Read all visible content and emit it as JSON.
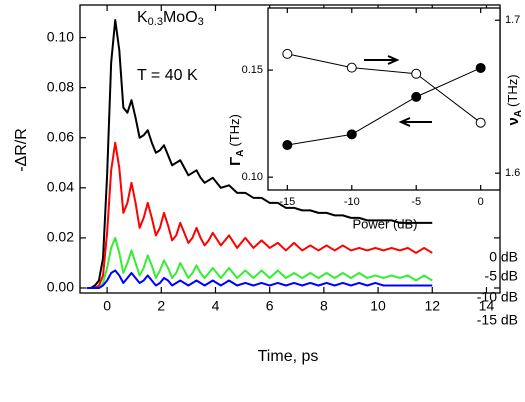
{
  "chart_data": [
    {
      "type": "line",
      "xlabel": "Time,  ps",
      "ylabel": "-ΔR/R",
      "formula": [
        "K",
        "0.3",
        "MoO",
        "3"
      ],
      "annotation": "T = 40 K",
      "legend": "right",
      "xlim": [
        -1,
        14.5
      ],
      "ylim": [
        -0.002,
        0.113
      ],
      "xticks": [
        0,
        2,
        4,
        6,
        8,
        10,
        12,
        14
      ],
      "yticks": [
        {
          "value": 0,
          "label": "0.00"
        },
        {
          "value": 0.02,
          "label": "0.02"
        },
        {
          "value": 0.04,
          "label": "0.04"
        },
        {
          "value": 0.06,
          "label": "0.06"
        },
        {
          "value": 0.08,
          "label": "0.08"
        },
        {
          "value": 0.1,
          "label": "0.10"
        }
      ],
      "x": [
        -0.75,
        -0.6,
        -0.45,
        -0.3,
        -0.15,
        0,
        0.15,
        0.3,
        0.45,
        0.6,
        0.75,
        0.9,
        1.05,
        1.2,
        1.35,
        1.5,
        1.65,
        1.8,
        1.95,
        2.1,
        2.25,
        2.4,
        2.55,
        2.7,
        2.85,
        3.0,
        3.15,
        3.3,
        3.45,
        3.6,
        3.75,
        3.9,
        4.2,
        4.5,
        4.8,
        5.1,
        5.4,
        5.7,
        6.0,
        6.3,
        6.6,
        6.9,
        7.2,
        7.5,
        7.8,
        8.1,
        8.4,
        8.7,
        9.0,
        9.3,
        9.6,
        9.9,
        10.2,
        10.5,
        10.8,
        11.1,
        11.4,
        11.7,
        12.0
      ],
      "series": [
        {
          "name": "0 dB",
          "color": "#000000",
          "values": [
            0,
            0,
            0.001,
            0.003,
            0.012,
            0.045,
            0.09,
            0.107,
            0.095,
            0.072,
            0.07,
            0.075,
            0.068,
            0.06,
            0.061,
            0.063,
            0.058,
            0.054,
            0.055,
            0.057,
            0.053,
            0.049,
            0.05,
            0.051,
            0.048,
            0.045,
            0.046,
            0.047,
            0.044,
            0.042,
            0.043,
            0.044,
            0.04,
            0.041,
            0.038,
            0.038,
            0.036,
            0.036,
            0.034,
            0.034,
            0.032,
            0.032,
            0.031,
            0.031,
            0.03,
            0.03,
            0.029,
            0.029,
            0.028,
            0.028,
            0.027,
            0.027,
            0.027,
            0.027,
            0.026,
            0.026,
            0.026,
            0.026,
            0.026
          ]
        },
        {
          "name": "-5 dB",
          "color": "#ff0000",
          "values": [
            0,
            0,
            0,
            0.001,
            0.005,
            0.022,
            0.047,
            0.058,
            0.048,
            0.03,
            0.034,
            0.042,
            0.034,
            0.024,
            0.028,
            0.034,
            0.028,
            0.021,
            0.024,
            0.03,
            0.025,
            0.019,
            0.021,
            0.026,
            0.022,
            0.018,
            0.02,
            0.024,
            0.02,
            0.017,
            0.019,
            0.022,
            0.017,
            0.021,
            0.016,
            0.02,
            0.016,
            0.019,
            0.016,
            0.018,
            0.015,
            0.018,
            0.015,
            0.017,
            0.015,
            0.017,
            0.015,
            0.017,
            0.015,
            0.016,
            0.015,
            0.016,
            0.015,
            0.016,
            0.015,
            0.016,
            0.014,
            0.016,
            0.014
          ]
        },
        {
          "name": "-10 dB",
          "color": "#33ee33",
          "values": [
            0,
            0,
            0,
            0,
            0.002,
            0.008,
            0.016,
            0.02,
            0.014,
            0.006,
            0.01,
            0.015,
            0.01,
            0.005,
            0.008,
            0.013,
            0.009,
            0.004,
            0.007,
            0.011,
            0.008,
            0.004,
            0.006,
            0.01,
            0.007,
            0.004,
            0.006,
            0.009,
            0.006,
            0.004,
            0.006,
            0.008,
            0.004,
            0.008,
            0.004,
            0.007,
            0.004,
            0.007,
            0.004,
            0.007,
            0.004,
            0.006,
            0.004,
            0.006,
            0.004,
            0.006,
            0.004,
            0.006,
            0.004,
            0.006,
            0.004,
            0.005,
            0.004,
            0.005,
            0.004,
            0.005,
            0.003,
            0.005,
            0.003
          ]
        },
        {
          "name": "-15 dB",
          "color": "#0000ff",
          "values": [
            0,
            0,
            0,
            0,
            0.001,
            0.003,
            0.006,
            0.007,
            0.005,
            0.002,
            0.004,
            0.006,
            0.004,
            0.002,
            0.003,
            0.005,
            0.003,
            0.001,
            0.002,
            0.004,
            0.003,
            0.001,
            0.002,
            0.003,
            0.002,
            0.001,
            0.002,
            0.003,
            0.002,
            0.001,
            0.002,
            0.003,
            0.001,
            0.003,
            0.001,
            0.002,
            0.001,
            0.002,
            0.001,
            0.002,
            0.001,
            0.002,
            0.001,
            0.002,
            0.001,
            0.002,
            0.001,
            0.002,
            0.001,
            0.002,
            0.001,
            0.002,
            0.001,
            0.001,
            0.001,
            0.001,
            0.001,
            0.001,
            0.001
          ]
        }
      ]
    },
    {
      "type": "line",
      "xlabel": "Power (dB)",
      "ylabel": {
        "symbol": "Γ",
        "subscript": "A",
        "unit": "(THz)"
      },
      "y2label": {
        "symbol": "ν",
        "subscript": "A",
        "unit": "(THz)"
      },
      "xlim": [
        -16.5,
        1.5
      ],
      "ylim": [
        0.094,
        0.179
      ],
      "y2lim": [
        1.589,
        1.708
      ],
      "xticks": [
        -15,
        -10,
        -5,
        0
      ],
      "yticks": [
        {
          "value": 0.1,
          "label": "0.10"
        },
        {
          "value": 0.15,
          "label": "0.15"
        }
      ],
      "y2ticks": [
        1.6,
        1.7
      ],
      "x": [
        -15,
        -10,
        -5,
        0
      ],
      "series": [
        {
          "color": "#000000",
          "marker": "filled-circle",
          "values": [
            0.115,
            0.12,
            0.1375,
            0.151
          ]
        },
        {
          "color": "#000000",
          "marker": "open-circle",
          "axis": "y2",
          "values": [
            1.678,
            1.669,
            1.665,
            1.633
          ]
        }
      ]
    }
  ]
}
